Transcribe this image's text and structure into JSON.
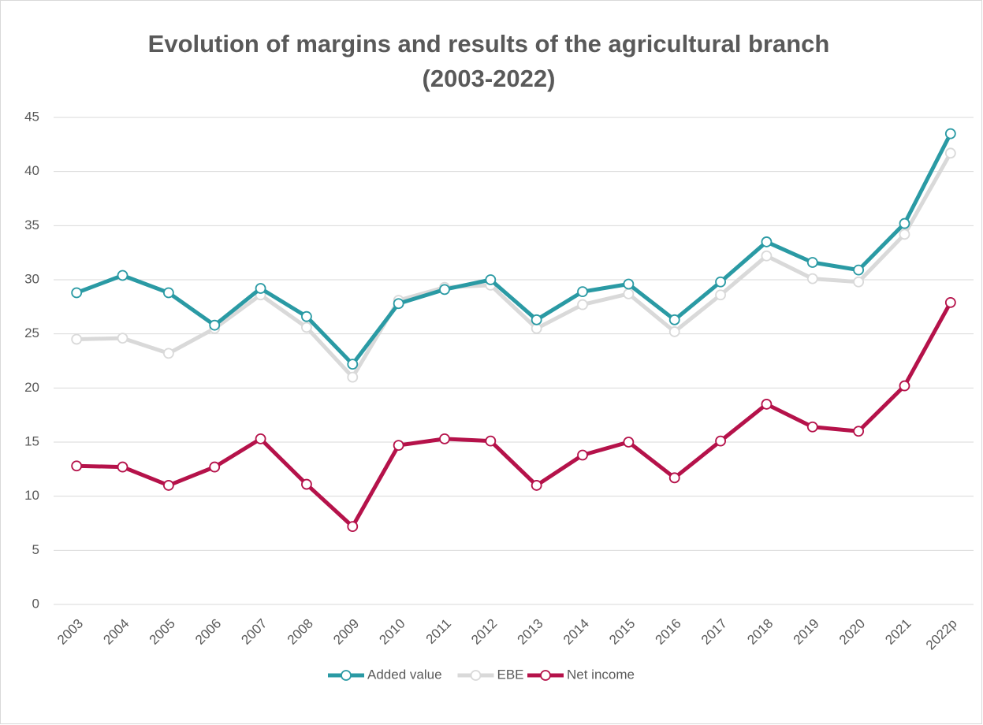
{
  "chart_data": {
    "type": "line",
    "title": [
      "Evolution of margins and results of the agricultural branch",
      "(2003-2022)"
    ],
    "categories": [
      "2003",
      "2004",
      "2005",
      "2006",
      "2007",
      "2008",
      "2009",
      "2010",
      "2011",
      "2012",
      "2013",
      "2014",
      "2015",
      "2016",
      "2017",
      "2018",
      "2019",
      "2020",
      "2021",
      "2022p"
    ],
    "series": [
      {
        "name": "Added value",
        "color": "#2a9aa4",
        "values": [
          28.8,
          30.4,
          28.8,
          25.8,
          29.2,
          26.6,
          22.2,
          27.8,
          29.1,
          30.0,
          26.3,
          28.9,
          29.6,
          26.3,
          29.8,
          33.5,
          31.6,
          30.9,
          35.2,
          43.5
        ]
      },
      {
        "name": "EBE",
        "color": "#d9d9d9",
        "values": [
          24.5,
          24.6,
          23.2,
          25.5,
          28.6,
          25.6,
          21.0,
          28.1,
          29.3,
          29.5,
          25.5,
          27.7,
          28.7,
          25.2,
          28.6,
          32.2,
          30.1,
          29.8,
          34.2,
          41.7
        ]
      },
      {
        "name": "Net income",
        "color": "#b5124a",
        "values": [
          12.8,
          12.7,
          11.0,
          12.7,
          15.3,
          11.1,
          7.2,
          14.7,
          15.3,
          15.1,
          11.0,
          13.8,
          15.0,
          11.7,
          15.1,
          18.5,
          16.4,
          16.0,
          20.2,
          27.9
        ]
      }
    ],
    "ylim": [
      0,
      45
    ],
    "yticks": [
      0,
      5,
      10,
      15,
      20,
      25,
      30,
      35,
      40,
      45
    ],
    "grid": true,
    "legend": "bottom"
  }
}
